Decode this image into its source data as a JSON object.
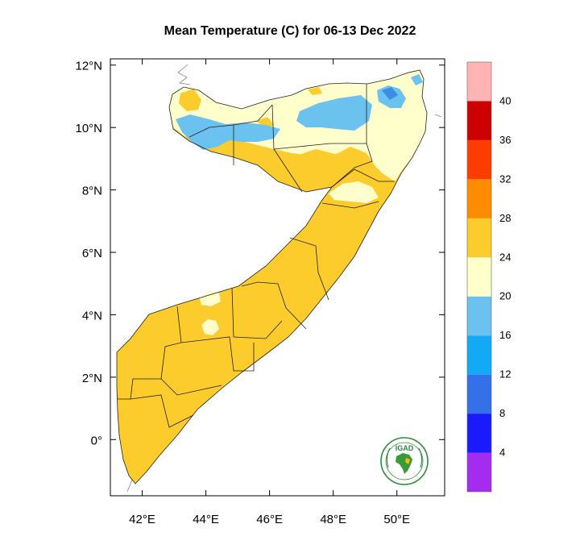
{
  "title": "Mean Temperature (C) for 06-13 Dec 2022",
  "map": {
    "region": "Somalia",
    "lon_range": [
      41.0,
      51.5
    ],
    "lat_range": [
      -1.8,
      12.2
    ],
    "x_ticks": [
      {
        "lon": 42,
        "label": "42°E"
      },
      {
        "lon": 44,
        "label": "44°E"
      },
      {
        "lon": 46,
        "label": "46°E"
      },
      {
        "lon": 48,
        "label": "48°E"
      },
      {
        "lon": 50,
        "label": "50°E"
      }
    ],
    "y_ticks": [
      {
        "lat": 12,
        "label": "12°N"
      },
      {
        "lat": 10,
        "label": "10°N"
      },
      {
        "lat": 8,
        "label": "8°N"
      },
      {
        "lat": 6,
        "label": "6°N"
      },
      {
        "lat": 4,
        "label": "4°N"
      },
      {
        "lat": 2,
        "label": "2°N"
      },
      {
        "lat": 0,
        "label": "0°"
      }
    ],
    "field_colors": {
      "band_16_20": "#6cc2ee",
      "band_20_24": "#ffffcc",
      "band_24_28": "#fccb2c",
      "band_12_16": "#3d8ce6"
    }
  },
  "colorbar": {
    "bins": [
      {
        "color": "#a32cf0"
      },
      {
        "color": "#1a1aff"
      },
      {
        "color": "#3670e8"
      },
      {
        "color": "#12aaf5"
      },
      {
        "color": "#6cc2ee"
      },
      {
        "color": "#ffffcc"
      },
      {
        "color": "#fccb2c"
      },
      {
        "color": "#ff8c00"
      },
      {
        "color": "#ff3c00"
      },
      {
        "color": "#cc0000"
      },
      {
        "color": "#ffb3b3"
      }
    ],
    "labels": [
      "4",
      "8",
      "12",
      "16",
      "20",
      "24",
      "28",
      "32",
      "36",
      "40"
    ]
  },
  "logo": {
    "text": "IGAD"
  }
}
